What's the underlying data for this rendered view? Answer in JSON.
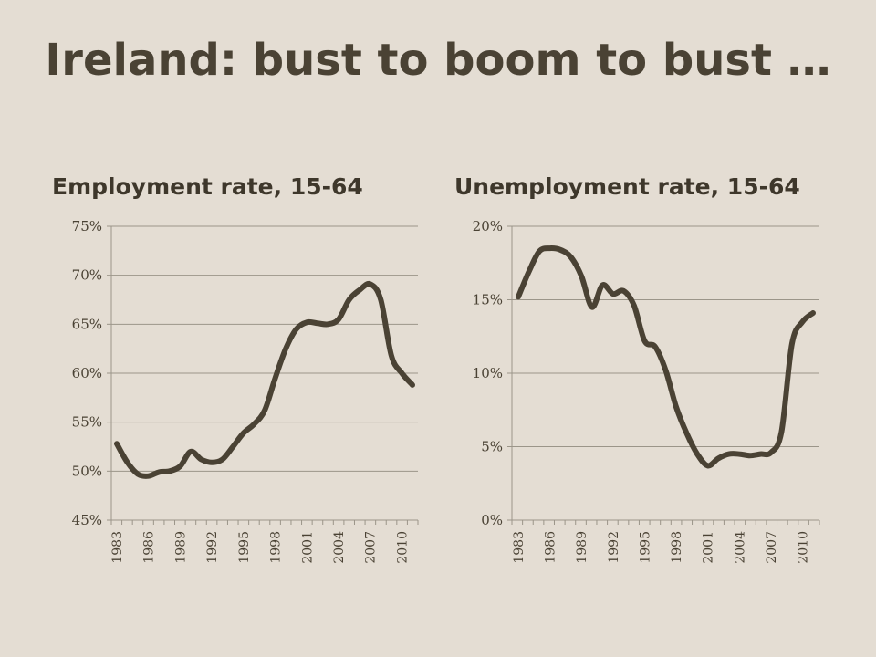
{
  "title": "Ireland: bust to boom to bust …",
  "colors": {
    "line": "#4a4234",
    "grid": "#9b9589",
    "background": "#e4ddd3"
  },
  "chart_data": [
    {
      "type": "line",
      "title": "Employment rate, 15-64",
      "ylim": [
        45,
        75
      ],
      "y_ticks": [
        "45%",
        "50%",
        "55%",
        "60%",
        "65%",
        "70%",
        "75%"
      ],
      "y_tick_values": [
        45,
        50,
        55,
        60,
        65,
        70,
        75
      ],
      "x_ticks": [
        "1983",
        "1986",
        "1989",
        "1992",
        "1995",
        "1998",
        "2001",
        "2004",
        "2007",
        "2010"
      ],
      "grid": true,
      "series": [
        {
          "x": [
            1983,
            1984,
            1985,
            1986,
            1987,
            1988,
            1989,
            1990,
            1991,
            1992,
            1993,
            1994,
            1995,
            1996,
            1997,
            1998,
            1999,
            2000,
            2001,
            2002,
            2003,
            2004,
            2005,
            2006,
            2007,
            2008,
            2009,
            2010,
            2011
          ],
          "values": [
            52.8,
            50.9,
            49.7,
            49.5,
            49.9,
            50.0,
            50.5,
            52.0,
            51.2,
            50.9,
            51.2,
            52.5,
            53.9,
            54.8,
            56.2,
            59.5,
            62.5,
            64.5,
            65.2,
            65.1,
            65.0,
            65.5,
            67.5,
            68.5,
            69.1,
            67.5,
            61.8,
            60.0,
            58.8
          ]
        }
      ]
    },
    {
      "type": "line",
      "title": "Unemployment rate, 15-64",
      "ylim": [
        0,
        20
      ],
      "y_ticks": [
        "0%",
        "5%",
        "10%",
        "15%",
        "20%"
      ],
      "y_tick_values": [
        0,
        5,
        10,
        15,
        20
      ],
      "x_ticks": [
        "1983",
        "1986",
        "1989",
        "1992",
        "1995",
        "1998",
        "2001",
        "2004",
        "2007",
        "2010"
      ],
      "grid": true,
      "series": [
        {
          "x": [
            1983,
            1984,
            1985,
            1986,
            1987,
            1988,
            1989,
            1990,
            1991,
            1992,
            1993,
            1994,
            1995,
            1996,
            1997,
            1998,
            1999,
            2000,
            2001,
            2002,
            2003,
            2004,
            2005,
            2006,
            2007,
            2008,
            2009,
            2010,
            2011
          ],
          "values": [
            15.2,
            16.9,
            18.3,
            18.5,
            18.4,
            17.9,
            16.6,
            14.5,
            16.0,
            15.4,
            15.6,
            14.6,
            12.2,
            11.8,
            10.2,
            7.7,
            5.9,
            4.5,
            3.7,
            4.2,
            4.5,
            4.5,
            4.4,
            4.5,
            4.6,
            6.0,
            12.0,
            13.5,
            14.1
          ]
        }
      ]
    }
  ]
}
